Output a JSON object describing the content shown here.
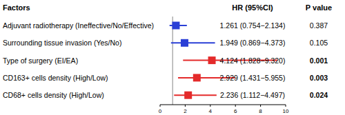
{
  "chart_data": {
    "type": "forest",
    "columns": [
      "Factors",
      "HR (95%CI)",
      "P value"
    ],
    "categories": [
      "Adjuvant radiotherapy (Ineffective/No/Effective)",
      "Surrounding tissue invasion (Yes/No)",
      "Type of surgery (EI/EA)",
      "CD163+ cells density (High/Low)",
      "CD68+ cells density (High/Low)"
    ],
    "values": [
      1.261,
      1.949,
      4.124,
      2.929,
      2.236
    ],
    "ci_lower": [
      0.754,
      0.869,
      1.828,
      1.431,
      1.112
    ],
    "ci_upper": [
      2.134,
      4.373,
      9.32,
      5.955,
      4.497
    ],
    "value_labels": [
      "1.261 (0.754−2.134)",
      "1.949 (0.869−4.373)",
      "4.124 (1.828−9.320)",
      "2.929 (1.431−5.955)",
      "2.236 (1.112−4.497)"
    ],
    "p_values": [
      0.387,
      0.105,
      0.001,
      0.003,
      0.024
    ],
    "colors": [
      "#2a3fd6",
      "#2a3fd6",
      "#e42a2a",
      "#e42a2a",
      "#e42a2a"
    ],
    "reference_line": 1,
    "xlim": [
      0,
      10
    ],
    "xticks": [
      0,
      2,
      4,
      6,
      8,
      10
    ]
  }
}
